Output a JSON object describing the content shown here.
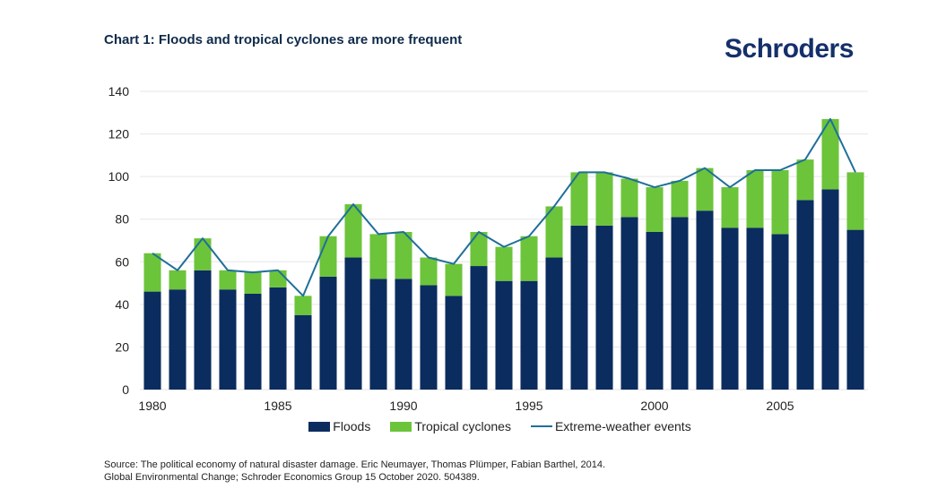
{
  "header": {
    "title": "Chart 1: Floods and tropical cyclones are more frequent",
    "logo": "Schroders"
  },
  "colors": {
    "floods": "#0b2c5e",
    "cyclones": "#6cc43a",
    "line": "#1f6f9a",
    "grid": "#e6e6e6",
    "title": "#0f2a4a"
  },
  "chart_data": {
    "type": "bar",
    "stacked": true,
    "title": "Chart 1: Floods and tropical cyclones are more frequent",
    "xlabel": "",
    "ylabel": "",
    "ylim": [
      0,
      140
    ],
    "yticks": [
      0,
      20,
      40,
      60,
      80,
      100,
      120,
      140
    ],
    "xtick_labels": [
      "1980",
      "1985",
      "1990",
      "1995",
      "2000",
      "2005"
    ],
    "grid": true,
    "legend_position": "bottom",
    "categories": [
      1980,
      1981,
      1982,
      1983,
      1984,
      1985,
      1986,
      1987,
      1988,
      1989,
      1990,
      1991,
      1992,
      1993,
      1994,
      1995,
      1996,
      1997,
      1998,
      1999,
      2000,
      2001,
      2002,
      2003,
      2004,
      2005,
      2006,
      2007,
      2008
    ],
    "series": [
      {
        "name": "Floods",
        "kind": "bar",
        "values": [
          46,
          47,
          56,
          47,
          45,
          48,
          35,
          53,
          62,
          52,
          52,
          49,
          44,
          58,
          51,
          51,
          62,
          77,
          77,
          81,
          74,
          81,
          84,
          76,
          76,
          73,
          89,
          94,
          75
        ]
      },
      {
        "name": "Tropical cyclones",
        "kind": "bar",
        "values": [
          18,
          9,
          15,
          9,
          10,
          8,
          9,
          19,
          25,
          21,
          22,
          13,
          15,
          16,
          16,
          21,
          24,
          25,
          25,
          18,
          21,
          17,
          20,
          19,
          27,
          30,
          19,
          33,
          27
        ]
      },
      {
        "name": "Extreme-weather events",
        "kind": "line",
        "values": [
          64,
          56,
          71,
          56,
          55,
          56,
          44,
          72,
          87,
          73,
          74,
          62,
          59,
          74,
          67,
          72,
          86,
          102,
          102,
          99,
          95,
          98,
          104,
          95,
          103,
          103,
          108,
          127,
          102
        ]
      }
    ]
  },
  "legend": {
    "floods": "Floods",
    "cyclones": "Tropical cyclones",
    "line": "Extreme-weather events"
  },
  "source": {
    "line1": "Source: The political economy of natural disaster damage. Eric Neumayer, Thomas Plümper, Fabian Barthel, 2014.",
    "line2": "Global Environmental Change; Schroder Economics Group 15 October 2020. 504389."
  }
}
